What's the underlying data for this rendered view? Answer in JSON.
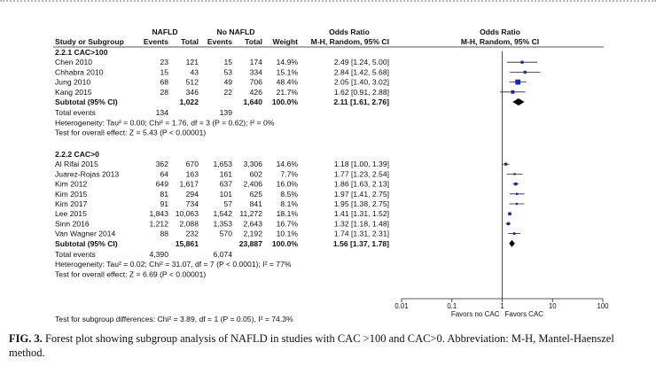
{
  "chart_data": {
    "type": "forest",
    "scale": "log",
    "xlim": [
      0.01,
      100
    ],
    "x_ticks": [
      "0.01",
      "0.1",
      "1",
      "10",
      "100"
    ],
    "headers": {
      "nafld": "NAFLD",
      "no_nafld": "No NAFLD",
      "odds_ratio_left": "Odds Ratio",
      "odds_ratio_right": "Odds Ratio",
      "study": "Study or Subgroup",
      "events": "Events",
      "total": "Total",
      "events2": "Events",
      "total2": "Total",
      "weight": "Weight",
      "method_left": "M-H, Random, 95% CI",
      "method_right": "M-H, Random, 95% CI"
    },
    "subgroups": [
      {
        "title": "2.2.1 CAC>100",
        "studies": [
          {
            "name": "Chen 2010",
            "e1": "23",
            "t1": "121",
            "e2": "15",
            "t2": "174",
            "weight": "14.9%",
            "ci_text": "2.49 [1.24, 5.00]",
            "or": 2.49,
            "lo": 1.24,
            "hi": 5.0
          },
          {
            "name": "Chhabra 2010",
            "e1": "15",
            "t1": "43",
            "e2": "53",
            "t2": "334",
            "weight": "15.1%",
            "ci_text": "2.84 [1.42, 5.68]",
            "or": 2.84,
            "lo": 1.42,
            "hi": 5.68
          },
          {
            "name": "Jung 2010",
            "e1": "68",
            "t1": "512",
            "e2": "49",
            "t2": "706",
            "weight": "48.4%",
            "ci_text": "2.05 [1.40, 3.02]",
            "or": 2.05,
            "lo": 1.4,
            "hi": 3.02
          },
          {
            "name": "Kang 2015",
            "e1": "28",
            "t1": "346",
            "e2": "22",
            "t2": "426",
            "weight": "21.7%",
            "ci_text": "1.62 [0.91, 2.88]",
            "or": 1.62,
            "lo": 0.91,
            "hi": 2.88
          }
        ],
        "subtotal": {
          "label": "Subtotal (95% CI)",
          "t1": "1,022",
          "t2": "1,640",
          "weight": "100.0%",
          "ci_text": "2.11 [1.61, 2.76]",
          "or": 2.11,
          "lo": 1.61,
          "hi": 2.76
        },
        "total_events": {
          "label": "Total events",
          "e1": "134",
          "e2": "139"
        },
        "heterogeneity": "Heterogeneity: Tau² = 0.00; Chi² = 1.76, df = 3 (P = 0.62); I² = 0%",
        "overall_effect": "Test for overall effect: Z = 5.43 (P < 0.00001)"
      },
      {
        "title": "2.2.2 CAC>0",
        "studies": [
          {
            "name": "Al Rifai 2015",
            "e1": "362",
            "t1": "670",
            "e2": "1,653",
            "t2": "3,306",
            "weight": "14.6%",
            "ci_text": "1.18 [1.00, 1.39]",
            "or": 1.18,
            "lo": 1.0,
            "hi": 1.39
          },
          {
            "name": "Juarez-Rojas 2013",
            "e1": "64",
            "t1": "163",
            "e2": "161",
            "t2": "602",
            "weight": "7.7%",
            "ci_text": "1.77 [1.23, 2.54]",
            "or": 1.77,
            "lo": 1.23,
            "hi": 2.54
          },
          {
            "name": "Kim 2012",
            "e1": "649",
            "t1": "1,617",
            "e2": "637",
            "t2": "2,406",
            "weight": "16.0%",
            "ci_text": "1.86 [1.63, 2.13]",
            "or": 1.86,
            "lo": 1.63,
            "hi": 2.13
          },
          {
            "name": "Kim 2015",
            "e1": "81",
            "t1": "294",
            "e2": "101",
            "t2": "625",
            "weight": "8.5%",
            "ci_text": "1.97 [1.41, 2.75]",
            "or": 1.97,
            "lo": 1.41,
            "hi": 2.75
          },
          {
            "name": "Kim 2017",
            "e1": "91",
            "t1": "734",
            "e2": "57",
            "t2": "841",
            "weight": "8.1%",
            "ci_text": "1.95 [1.38, 2.75]",
            "or": 1.95,
            "lo": 1.38,
            "hi": 2.75
          },
          {
            "name": "Lee 2015",
            "e1": "1,843",
            "t1": "10,063",
            "e2": "1,542",
            "t2": "11,272",
            "weight": "18.1%",
            "ci_text": "1.41 [1.31, 1.52]",
            "or": 1.41,
            "lo": 1.31,
            "hi": 1.52
          },
          {
            "name": "Sinn 2016",
            "e1": "1,212",
            "t1": "2,088",
            "e2": "1,353",
            "t2": "2,643",
            "weight": "16.7%",
            "ci_text": "1.32 [1.18, 1.48]",
            "or": 1.32,
            "lo": 1.18,
            "hi": 1.48
          },
          {
            "name": "Van Wagner 2014",
            "e1": "88",
            "t1": "232",
            "e2": "570",
            "t2": "2,192",
            "weight": "10.1%",
            "ci_text": "1.74 [1.31, 2.31]",
            "or": 1.74,
            "lo": 1.31,
            "hi": 2.31
          }
        ],
        "subtotal": {
          "label": "Subtotal (95% CI)",
          "t1": "15,861",
          "t2": "23,887",
          "weight": "100.0%",
          "ci_text": "1.56 [1.37, 1.78]",
          "or": 1.56,
          "lo": 1.37,
          "hi": 1.78
        },
        "total_events": {
          "label": "Total events",
          "e1": "4,390",
          "e2": "6,074"
        },
        "heterogeneity": "Heterogeneity: Tau² = 0.02; Chi² = 31.07, df = 7 (P < 0.0001); I² = 77%",
        "overall_effect": "Test for overall effect: Z = 6.69 (P < 0.00001)"
      }
    ],
    "favors_left": "Favors no CAC",
    "favors_right": "Favors CAC",
    "subgroup_test": "Test for subgroup differences: Chi² = 3.89, df = 1 (P = 0.05), I² = 74.3%"
  },
  "caption": {
    "label": "FIG. 3.",
    "text": "Forest plot showing subgroup analysis of NAFLD in studies with CAC >100 and CAC>0. Abbreviation: M-H, Mantel-Haenszel method."
  },
  "colors": {
    "marker": "#1428b4",
    "text": "#111111",
    "line": "#222222",
    "dotted": "#b8b8b8"
  }
}
